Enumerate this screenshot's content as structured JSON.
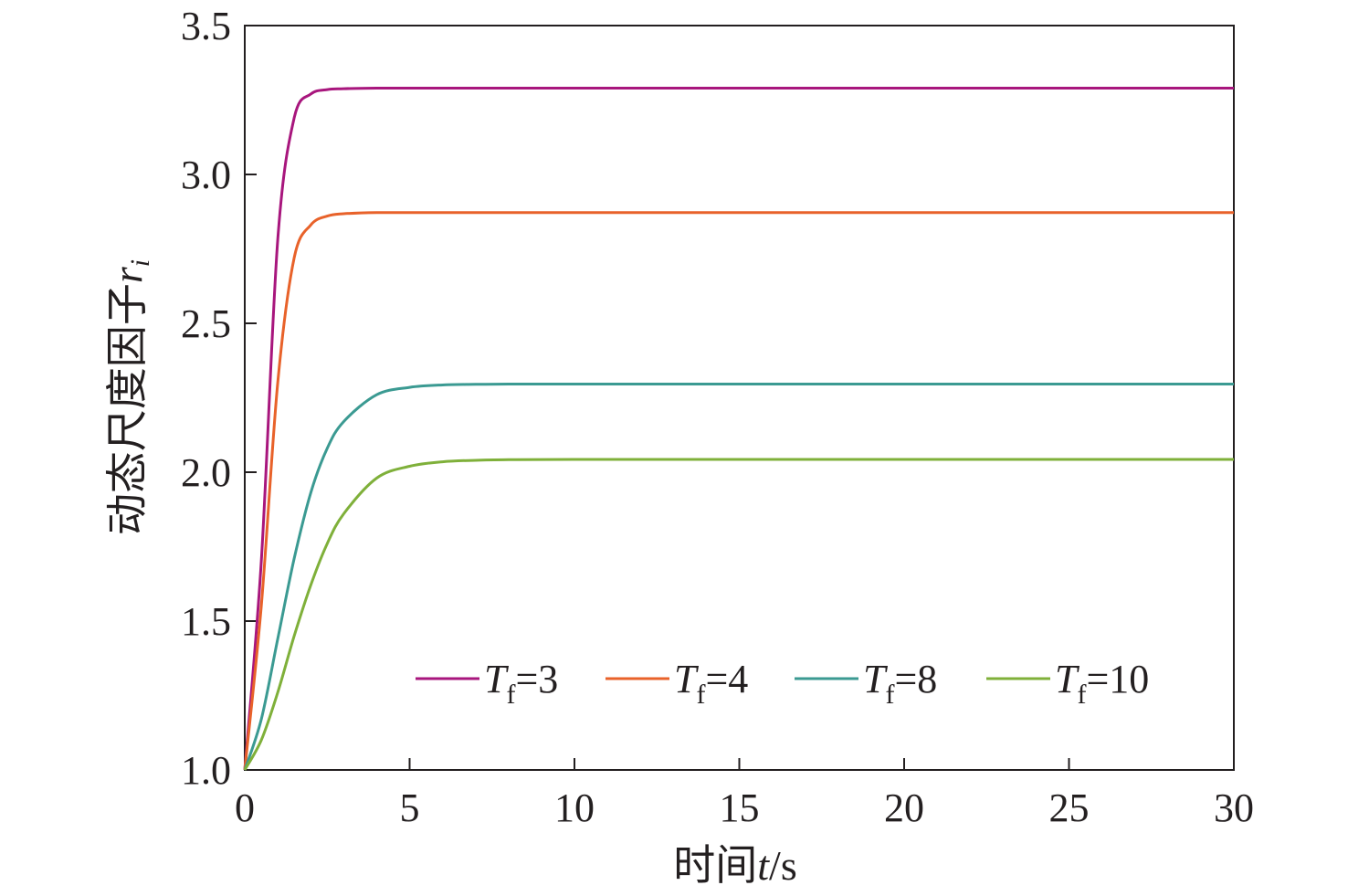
{
  "chart_data": {
    "type": "line",
    "xlabel": {
      "prefix": "时间",
      "var": "t",
      "suffix": "/s"
    },
    "ylabel": {
      "prefix": "动态尺度因子",
      "var": "r",
      "sub": "i"
    },
    "xlim": [
      0,
      30
    ],
    "ylim": [
      1.0,
      3.5
    ],
    "x_ticks": [
      0,
      5,
      10,
      15,
      20,
      25,
      30
    ],
    "x_tick_labels": [
      "0",
      "5",
      "10",
      "15",
      "20",
      "25",
      "30"
    ],
    "y_ticks": [
      1.0,
      1.5,
      2.0,
      2.5,
      3.0,
      3.5
    ],
    "y_tick_labels": [
      "1.0",
      "1.5",
      "2.0",
      "2.5",
      "3.0",
      "3.5"
    ],
    "grid": false,
    "legend_position": "bottom-right",
    "x": [
      0,
      0.5,
      1,
      1.5,
      2,
      2.5,
      3,
      4,
      5,
      6,
      7,
      8,
      10,
      15,
      20,
      25,
      30
    ],
    "series": [
      {
        "name": "Tf=3",
        "label": {
          "var": "T",
          "sub": "f",
          "value": "=3"
        },
        "color": "#a8167d",
        "values": [
          1.0,
          1.7,
          2.78,
          3.19,
          3.27,
          3.285,
          3.288,
          3.29,
          3.29,
          3.29,
          3.29,
          3.29,
          3.29,
          3.29,
          3.29,
          3.29,
          3.29
        ]
      },
      {
        "name": "Tf=4",
        "label": {
          "var": "T",
          "sub": "f",
          "value": "=4"
        },
        "color": "#e8622a",
        "values": [
          1.0,
          1.55,
          2.3,
          2.72,
          2.83,
          2.86,
          2.868,
          2.872,
          2.872,
          2.872,
          2.872,
          2.872,
          2.872,
          2.872,
          2.872,
          2.872,
          2.872
        ]
      },
      {
        "name": "Tf=8",
        "label": {
          "var": "T",
          "sub": "f",
          "value": "=8"
        },
        "color": "#3b9a92",
        "values": [
          1.0,
          1.17,
          1.44,
          1.71,
          1.93,
          2.08,
          2.17,
          2.26,
          2.285,
          2.293,
          2.295,
          2.296,
          2.296,
          2.296,
          2.296,
          2.296,
          2.296
        ]
      },
      {
        "name": "Tf=10",
        "label": {
          "var": "T",
          "sub": "f",
          "value": "=10"
        },
        "color": "#7fb03a",
        "values": [
          1.0,
          1.1,
          1.26,
          1.45,
          1.62,
          1.76,
          1.86,
          1.98,
          2.02,
          2.035,
          2.04,
          2.042,
          2.043,
          2.043,
          2.043,
          2.043,
          2.043
        ]
      }
    ]
  }
}
